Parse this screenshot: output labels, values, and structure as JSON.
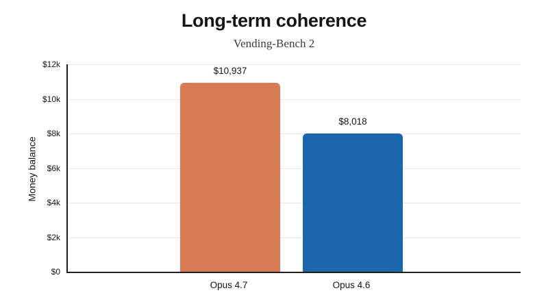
{
  "header": {
    "title": "Long-term coherence",
    "subtitle": "Vending-Bench 2"
  },
  "colors": {
    "background": "#ffffff",
    "axis": "#1f1f1e",
    "gridline": "#ebe8e1",
    "text": "#141413",
    "subtitle_text": "#3c3c39",
    "bar_opus_47": "#d77a55",
    "bar_opus_46": "#1b67ae"
  },
  "chart_data": {
    "type": "bar",
    "title": "Long-term coherence",
    "subtitle": "Vending-Bench 2",
    "categories": [
      "Opus 4.7",
      "Opus 4.6"
    ],
    "values": [
      10937,
      8018
    ],
    "value_labels": [
      "$10,937",
      "$8,018"
    ],
    "bar_colors": [
      "#d77a55",
      "#1b67ae"
    ],
    "xlabel": "",
    "ylabel": "Money balance",
    "ylim": [
      0,
      12000
    ],
    "yticks": [
      {
        "value": 0,
        "label": "$0"
      },
      {
        "value": 2000,
        "label": "$2k"
      },
      {
        "value": 4000,
        "label": "$4k"
      },
      {
        "value": 6000,
        "label": "$6k"
      },
      {
        "value": 8000,
        "label": "$8k"
      },
      {
        "value": 10000,
        "label": "$10k"
      },
      {
        "value": 12000,
        "label": "$12k"
      }
    ],
    "grid": "horizontal",
    "legend_position": "none"
  }
}
